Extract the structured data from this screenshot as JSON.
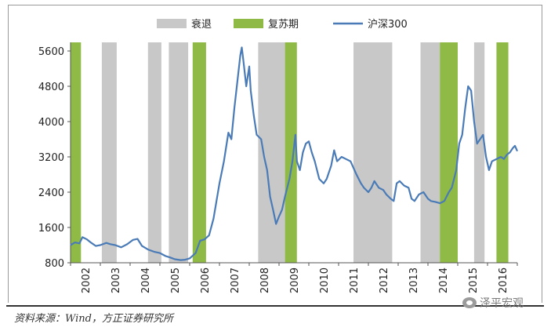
{
  "chart_data": {
    "type": "line",
    "title": "",
    "xlabel": "",
    "ylabel": "",
    "xlim": [
      2002,
      2017
    ],
    "ylim": [
      800,
      5600
    ],
    "yticks": [
      800,
      1600,
      2400,
      3200,
      4000,
      4800,
      5600
    ],
    "xticks": [
      "2002",
      "2003",
      "2004",
      "2005",
      "2006",
      "2007",
      "2008",
      "2009",
      "2010",
      "2011",
      "2012",
      "2013",
      "2014",
      "2015",
      "2016"
    ],
    "legend": {
      "placement": "top",
      "items": [
        {
          "label": "衰退",
          "kind": "band",
          "color": "#c8c8c8"
        },
        {
          "label": "复苏期",
          "kind": "band",
          "color": "#8fba45"
        },
        {
          "label": "沪深300",
          "kind": "line",
          "color": "#4a7bb7"
        }
      ]
    },
    "bands": [
      {
        "type": "复苏期",
        "start": 2002.0,
        "end": 2002.35
      },
      {
        "type": "衰退",
        "start": 2003.05,
        "end": 2003.55
      },
      {
        "type": "衰退",
        "start": 2004.6,
        "end": 2005.05
      },
      {
        "type": "衰退",
        "start": 2005.3,
        "end": 2005.95
      },
      {
        "type": "复苏期",
        "start": 2006.1,
        "end": 2006.55
      },
      {
        "type": "衰退",
        "start": 2008.3,
        "end": 2009.2
      },
      {
        "type": "复苏期",
        "start": 2009.2,
        "end": 2009.6
      },
      {
        "type": "衰退",
        "start": 2011.5,
        "end": 2012.8
      },
      {
        "type": "衰退",
        "start": 2013.75,
        "end": 2014.4
      },
      {
        "type": "复苏期",
        "start": 2014.4,
        "end": 2015.0
      },
      {
        "type": "衰退",
        "start": 2015.55,
        "end": 2015.9
      },
      {
        "type": "复苏期",
        "start": 2016.3,
        "end": 2016.7
      }
    ],
    "series": [
      {
        "name": "沪深300",
        "color": "#4a7bb7",
        "points": [
          [
            2002.0,
            1200
          ],
          [
            2002.15,
            1260
          ],
          [
            2002.3,
            1240
          ],
          [
            2002.4,
            1380
          ],
          [
            2002.55,
            1330
          ],
          [
            2002.7,
            1250
          ],
          [
            2002.85,
            1180
          ],
          [
            2003.0,
            1200
          ],
          [
            2003.2,
            1250
          ],
          [
            2003.35,
            1220
          ],
          [
            2003.5,
            1200
          ],
          [
            2003.7,
            1150
          ],
          [
            2003.9,
            1220
          ],
          [
            2004.1,
            1320
          ],
          [
            2004.25,
            1340
          ],
          [
            2004.4,
            1180
          ],
          [
            2004.6,
            1100
          ],
          [
            2004.8,
            1050
          ],
          [
            2005.0,
            1020
          ],
          [
            2005.2,
            950
          ],
          [
            2005.35,
            920
          ],
          [
            2005.5,
            880
          ],
          [
            2005.7,
            860
          ],
          [
            2005.85,
            870
          ],
          [
            2006.0,
            900
          ],
          [
            2006.2,
            1020
          ],
          [
            2006.35,
            1300
          ],
          [
            2006.5,
            1330
          ],
          [
            2006.65,
            1420
          ],
          [
            2006.8,
            1800
          ],
          [
            2006.9,
            2200
          ],
          [
            2007.0,
            2600
          ],
          [
            2007.15,
            3100
          ],
          [
            2007.3,
            3750
          ],
          [
            2007.4,
            3600
          ],
          [
            2007.5,
            4300
          ],
          [
            2007.6,
            4900
          ],
          [
            2007.7,
            5500
          ],
          [
            2007.75,
            5680
          ],
          [
            2007.8,
            5400
          ],
          [
            2007.9,
            4800
          ],
          [
            2008.0,
            5250
          ],
          [
            2008.05,
            4700
          ],
          [
            2008.15,
            4150
          ],
          [
            2008.25,
            3700
          ],
          [
            2008.4,
            3600
          ],
          [
            2008.5,
            3200
          ],
          [
            2008.6,
            2900
          ],
          [
            2008.7,
            2300
          ],
          [
            2008.8,
            2000
          ],
          [
            2008.9,
            1680
          ],
          [
            2009.0,
            1850
          ],
          [
            2009.1,
            2000
          ],
          [
            2009.2,
            2300
          ],
          [
            2009.35,
            2700
          ],
          [
            2009.45,
            3100
          ],
          [
            2009.55,
            3700
          ],
          [
            2009.6,
            3100
          ],
          [
            2009.7,
            2900
          ],
          [
            2009.8,
            3300
          ],
          [
            2009.9,
            3500
          ],
          [
            2010.0,
            3550
          ],
          [
            2010.1,
            3300
          ],
          [
            2010.2,
            3100
          ],
          [
            2010.35,
            2700
          ],
          [
            2010.5,
            2600
          ],
          [
            2010.6,
            2700
          ],
          [
            2010.75,
            3000
          ],
          [
            2010.85,
            3350
          ],
          [
            2010.95,
            3100
          ],
          [
            2011.1,
            3200
          ],
          [
            2011.25,
            3150
          ],
          [
            2011.4,
            3100
          ],
          [
            2011.5,
            2950
          ],
          [
            2011.6,
            2800
          ],
          [
            2011.75,
            2600
          ],
          [
            2011.85,
            2500
          ],
          [
            2012.0,
            2400
          ],
          [
            2012.1,
            2500
          ],
          [
            2012.2,
            2650
          ],
          [
            2012.35,
            2500
          ],
          [
            2012.5,
            2450
          ],
          [
            2012.6,
            2350
          ],
          [
            2012.75,
            2250
          ],
          [
            2012.85,
            2200
          ],
          [
            2012.95,
            2600
          ],
          [
            2013.05,
            2650
          ],
          [
            2013.2,
            2550
          ],
          [
            2013.35,
            2500
          ],
          [
            2013.45,
            2250
          ],
          [
            2013.55,
            2200
          ],
          [
            2013.7,
            2350
          ],
          [
            2013.85,
            2400
          ],
          [
            2014.0,
            2250
          ],
          [
            2014.1,
            2200
          ],
          [
            2014.25,
            2180
          ],
          [
            2014.4,
            2150
          ],
          [
            2014.55,
            2200
          ],
          [
            2014.7,
            2400
          ],
          [
            2014.8,
            2500
          ],
          [
            2014.95,
            2900
          ],
          [
            2015.05,
            3500
          ],
          [
            2015.15,
            3700
          ],
          [
            2015.25,
            4300
          ],
          [
            2015.35,
            4800
          ],
          [
            2015.45,
            4700
          ],
          [
            2015.55,
            4000
          ],
          [
            2015.65,
            3500
          ],
          [
            2015.75,
            3600
          ],
          [
            2015.85,
            3700
          ],
          [
            2015.95,
            3200
          ],
          [
            2016.05,
            2900
          ],
          [
            2016.15,
            3100
          ],
          [
            2016.3,
            3150
          ],
          [
            2016.45,
            3200
          ],
          [
            2016.55,
            3150
          ],
          [
            2016.65,
            3250
          ],
          [
            2016.75,
            3300
          ],
          [
            2016.85,
            3400
          ],
          [
            2016.92,
            3450
          ],
          [
            2017.0,
            3330
          ]
        ]
      }
    ]
  },
  "source_text": "资料来源：Wind，方正证券研究所",
  "watermark": {
    "icon": "wechat-logo",
    "text": "泽平宏观"
  }
}
